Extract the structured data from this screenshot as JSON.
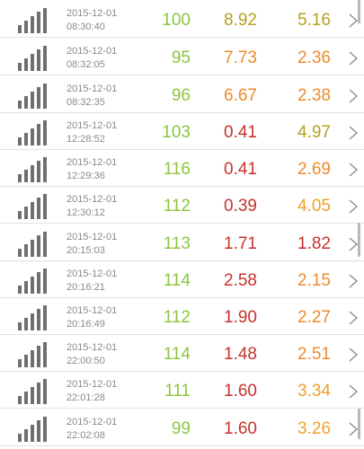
{
  "icons": {
    "signal": "signal-strength-icon",
    "chevron": "chevron-right-icon"
  },
  "colors": {
    "green": "#8cc63f",
    "olive": "#b3a21f",
    "orange": "#ef8a2c",
    "red": "#c8312d",
    "amber": "#f0a02a"
  },
  "rows": [
    {
      "date": "2015-12-01",
      "time": "08:30:40",
      "v1": "100",
      "v2": "8.92",
      "v3": "5.16",
      "c1": "#8cc63f",
      "c2": "#b3a21f",
      "c3": "#b3a21f"
    },
    {
      "date": "2015-12-01",
      "time": "08:32:05",
      "v1": "95",
      "v2": "7.73",
      "v3": "2.36",
      "c1": "#8cc63f",
      "c2": "#ef8a2c",
      "c3": "#ef8a2c"
    },
    {
      "date": "2015-12-01",
      "time": "08:32:35",
      "v1": "96",
      "v2": "6.67",
      "v3": "2.38",
      "c1": "#8cc63f",
      "c2": "#ef8a2c",
      "c3": "#ef8a2c"
    },
    {
      "date": "2015-12-01",
      "time": "12:28:52",
      "v1": "103",
      "v2": "0.41",
      "v3": "4.97",
      "c1": "#8cc63f",
      "c2": "#c8312d",
      "c3": "#b3a21f"
    },
    {
      "date": "2015-12-01",
      "time": "12:29:36",
      "v1": "116",
      "v2": "0.41",
      "v3": "2.69",
      "c1": "#8cc63f",
      "c2": "#c8312d",
      "c3": "#ef8a2c"
    },
    {
      "date": "2015-12-01",
      "time": "12:30:12",
      "v1": "112",
      "v2": "0.39",
      "v3": "4.05",
      "c1": "#8cc63f",
      "c2": "#c8312d",
      "c3": "#f0a02a"
    },
    {
      "date": "2015-12-01",
      "time": "20:15:03",
      "v1": "113",
      "v2": "1.71",
      "v3": "1.82",
      "c1": "#8cc63f",
      "c2": "#c8312d",
      "c3": "#c8312d"
    },
    {
      "date": "2015-12-01",
      "time": "20:16:21",
      "v1": "114",
      "v2": "2.58",
      "v3": "2.15",
      "c1": "#8cc63f",
      "c2": "#c8312d",
      "c3": "#ef8a2c"
    },
    {
      "date": "2015-12-01",
      "time": "20:16:49",
      "v1": "112",
      "v2": "1.90",
      "v3": "2.27",
      "c1": "#8cc63f",
      "c2": "#c8312d",
      "c3": "#ef8a2c"
    },
    {
      "date": "2015-12-01",
      "time": "22:00:50",
      "v1": "114",
      "v2": "1.48",
      "v3": "2.51",
      "c1": "#8cc63f",
      "c2": "#c8312d",
      "c3": "#ef8a2c"
    },
    {
      "date": "2015-12-01",
      "time": "22:01:28",
      "v1": "111",
      "v2": "1.60",
      "v3": "3.34",
      "c1": "#8cc63f",
      "c2": "#c8312d",
      "c3": "#f0a02a"
    },
    {
      "date": "2015-12-01",
      "time": "22:02:08",
      "v1": "99",
      "v2": "1.60",
      "v3": "3.26",
      "c1": "#8cc63f",
      "c2": "#c8312d",
      "c3": "#f0a02a"
    }
  ]
}
